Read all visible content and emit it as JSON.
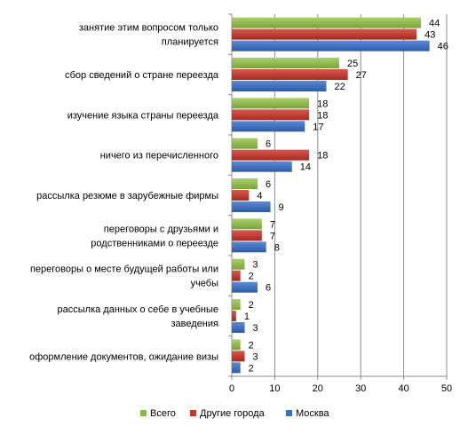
{
  "chart_data": {
    "type": "bar",
    "orientation": "horizontal",
    "categories": [
      [
        "занятие этим вопросом только",
        "планируется"
      ],
      [
        "сбор сведений о стране переезда"
      ],
      [
        "изучение языка страны переезда"
      ],
      [
        "ничего из перечисленного"
      ],
      [
        "рассылка резюме в зарубежные фирмы"
      ],
      [
        "переговоры с друзьями и",
        "родственниками о переезде"
      ],
      [
        "переговоры о месте будущей работы или",
        "учебы"
      ],
      [
        "рассылка данных  о себе в учебные",
        "заведения"
      ],
      [
        "оформление документов, ожидание визы"
      ]
    ],
    "series": [
      {
        "name": "Всего",
        "color": "#8DB645",
        "values": [
          44,
          25,
          18,
          6,
          6,
          7,
          3,
          2,
          2
        ]
      },
      {
        "name": "Другие города",
        "color": "#C0392F",
        "values": [
          43,
          27,
          18,
          18,
          4,
          7,
          2,
          1,
          3
        ]
      },
      {
        "name": "Москва",
        "color": "#3D6EBF",
        "values": [
          46,
          22,
          17,
          14,
          9,
          8,
          6,
          3,
          2
        ]
      }
    ],
    "xlim": [
      0,
      50
    ],
    "xticks": [
      "0",
      "10",
      "20",
      "30",
      "40",
      "50"
    ],
    "grid": true,
    "data_labels": true,
    "legend_position": "bottom"
  }
}
